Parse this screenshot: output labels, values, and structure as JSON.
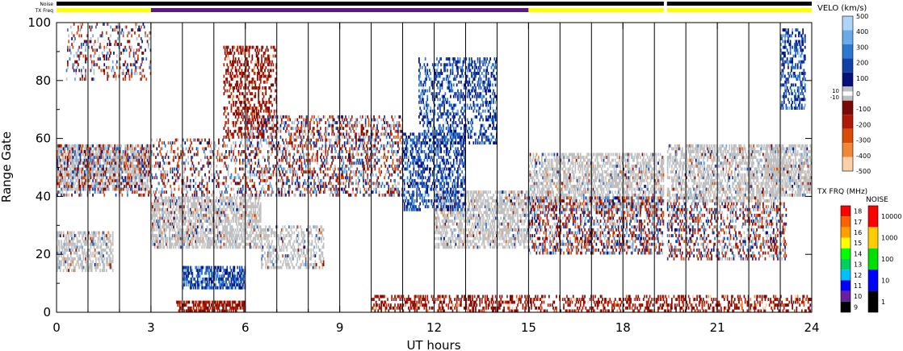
{
  "chart_data": {
    "type": "heatmap",
    "xlabel": "UT hours",
    "ylabel": "Range Gate",
    "x_ticks": [
      "0",
      "3",
      "6",
      "9",
      "12",
      "15",
      "18",
      "21",
      "24"
    ],
    "y_ticks": [
      "0",
      "20",
      "40",
      "60",
      "80",
      "100"
    ],
    "xlim": [
      0,
      24
    ],
    "ylim": [
      0,
      100
    ],
    "strip_labels": {
      "noise": "Noise",
      "txfreq": "TX Freq"
    },
    "noise_strip": [
      {
        "from": 0,
        "to": 19.3,
        "color": "#000000"
      },
      {
        "from": 19.4,
        "to": 24,
        "color": "#000000"
      }
    ],
    "txfreq_strip": [
      {
        "from": 0,
        "to": 3,
        "color": "#ffff00"
      },
      {
        "from": 3,
        "to": 15,
        "color": "#5a1a80"
      },
      {
        "from": 15,
        "to": 19.3,
        "color": "#ffff00"
      },
      {
        "from": 19.4,
        "to": 24,
        "color": "#ffff00"
      }
    ],
    "scan_boundaries": [
      1,
      2,
      3,
      4,
      5,
      6,
      7,
      8,
      9,
      10,
      11,
      12,
      13,
      14,
      15,
      16,
      17,
      18,
      19,
      20,
      21,
      22,
      23
    ],
    "backscatter_regions": [
      {
        "name": "ground-scatter-band-early",
        "x": [
          0,
          3
        ],
        "gates": [
          42,
          58
        ],
        "class": "ground",
        "density": 0.6
      },
      {
        "name": "ionospheric-early",
        "x": [
          0,
          3
        ],
        "gates": [
          40,
          58
        ],
        "class": "mixed",
        "density": 0.3
      },
      {
        "name": "ground-scatter-low-early",
        "x": [
          0,
          1.8
        ],
        "gates": [
          14,
          28
        ],
        "class": "ground",
        "density": 0.55
      },
      {
        "name": "far-range-noise-early",
        "x": [
          0.3,
          3
        ],
        "gates": [
          80,
          100
        ],
        "class": "mixed",
        "density": 0.2
      },
      {
        "name": "ground-scatter-band-mid",
        "x": [
          3,
          6.5
        ],
        "gates": [
          22,
          40
        ],
        "class": "ground",
        "density": 0.6
      },
      {
        "name": "receding-away-6h",
        "x": [
          5.3,
          7
        ],
        "gates": [
          60,
          92
        ],
        "class": "away",
        "density": 0.35
      },
      {
        "name": "mid-band-3-6",
        "x": [
          3,
          6
        ],
        "gates": [
          40,
          60
        ],
        "class": "mixed",
        "density": 0.25
      },
      {
        "name": "toward-near-5h",
        "x": [
          4,
          6
        ],
        "gates": [
          8,
          16
        ],
        "class": "toward",
        "density": 0.6
      },
      {
        "name": "away-near-4h",
        "x": [
          3.8,
          6
        ],
        "gates": [
          0,
          4
        ],
        "class": "away",
        "density": 0.7
      },
      {
        "name": "scatter-6-11",
        "x": [
          6,
          11
        ],
        "gates": [
          40,
          68
        ],
        "class": "mixed",
        "density": 0.35
      },
      {
        "name": "ground-6-8",
        "x": [
          6.5,
          8.5
        ],
        "gates": [
          15,
          30
        ],
        "class": "ground",
        "density": 0.4
      },
      {
        "name": "ground-band-12-15",
        "x": [
          12,
          15
        ],
        "gates": [
          22,
          42
        ],
        "class": "ground",
        "density": 0.55
      },
      {
        "name": "toward-arc-12h",
        "x": [
          11.5,
          14
        ],
        "gates": [
          58,
          88
        ],
        "class": "toward",
        "density": 0.35
      },
      {
        "name": "toward-diagonal-11-13",
        "x": [
          11,
          13
        ],
        "gates": [
          35,
          62
        ],
        "class": "toward",
        "density": 0.4
      },
      {
        "name": "ground-band-15-19",
        "x": [
          15,
          19.3
        ],
        "gates": [
          35,
          55
        ],
        "class": "ground",
        "density": 0.55
      },
      {
        "name": "mixed-band-15-19",
        "x": [
          15,
          19.3
        ],
        "gates": [
          20,
          40
        ],
        "class": "mixed",
        "density": 0.4
      },
      {
        "name": "ground-band-19-23",
        "x": [
          19.4,
          23
        ],
        "gates": [
          38,
          58
        ],
        "class": "ground",
        "density": 0.55
      },
      {
        "name": "mixed-band-19-23",
        "x": [
          19.4,
          23.2
        ],
        "gates": [
          18,
          38
        ],
        "class": "mixed",
        "density": 0.35
      },
      {
        "name": "ground-band-22-24",
        "x": [
          22.5,
          24
        ],
        "gates": [
          40,
          58
        ],
        "class": "ground",
        "density": 0.6
      },
      {
        "name": "away-near-range",
        "x": [
          10,
          24
        ],
        "gates": [
          0,
          6
        ],
        "class": "away",
        "density": 0.35
      },
      {
        "name": "toward-streak-23h",
        "x": [
          23,
          23.8
        ],
        "gates": [
          70,
          98
        ],
        "class": "toward",
        "density": 0.4
      }
    ],
    "velocity_colorbar": {
      "title": "VELO (km/s)",
      "tick_labels": [
        "500",
        "400",
        "300",
        "200",
        "100",
        "0",
        "-100",
        "-200",
        "-300",
        "-400",
        "-500"
      ],
      "ground_scatter_labels": [
        "10",
        "-10"
      ],
      "colors": [
        "#b0d4f8",
        "#6aaae8",
        "#2c78d0",
        "#1040a8",
        "#06107a",
        "#ffffff",
        "#7a0a06",
        "#b01808",
        "#d84c08",
        "#f08838",
        "#fad0a8"
      ]
    },
    "txfreq_colorbar": {
      "title": "TX FRQ (MHz)",
      "tick_labels": [
        "18",
        "17",
        "16",
        "15",
        "14",
        "13",
        "12",
        "11",
        "10",
        "9"
      ],
      "colors": [
        "#ff0000",
        "#ff6000",
        "#ffa000",
        "#ffff00",
        "#00ff00",
        "#00d060",
        "#00c0ff",
        "#0000ff",
        "#6a1fa0",
        "#000000"
      ]
    },
    "noise_colorbar": {
      "title": "NOISE",
      "tick_labels": [
        "10000",
        "1000",
        "100",
        "10",
        "1"
      ],
      "colors": [
        "#ff0000",
        "#ffcc00",
        "#00e000",
        "#0000ff",
        "#000000"
      ]
    }
  }
}
